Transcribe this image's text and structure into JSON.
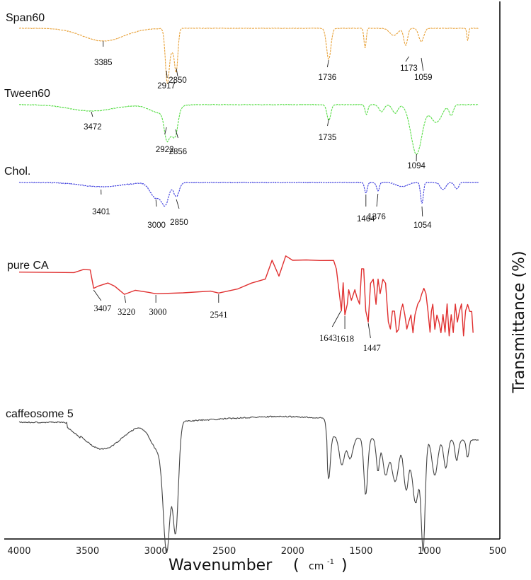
{
  "chart_data": {
    "type": "line",
    "xlabel": "Wavenumber",
    "xlabel_paren_open": "(",
    "xlabel_unit": "cm",
    "xlabel_unit_sup": "-1",
    "xlabel_paren_close": ")",
    "ylabel": "Transmittance (%)",
    "xlim": [
      4000,
      500
    ],
    "x_reversed": true,
    "xticks": [
      "4000",
      "3500",
      "3000",
      "2500",
      "2000",
      "1500",
      "1000",
      "500"
    ],
    "grid": false,
    "series": [
      {
        "name": "Span60",
        "color": "#e8a23a",
        "peaks": [
          {
            "wavenumber": 3385,
            "label": "3385"
          },
          {
            "wavenumber": 2917,
            "label": "2917"
          },
          {
            "wavenumber": 2850,
            "label": "2850"
          },
          {
            "wavenumber": 1736,
            "label": "1736"
          },
          {
            "wavenumber": 1173,
            "label": "1173"
          },
          {
            "wavenumber": 1059,
            "label": "1059"
          }
        ]
      },
      {
        "name": "Tween60",
        "color": "#55dd44",
        "peaks": [
          {
            "wavenumber": 3472,
            "label": "3472"
          },
          {
            "wavenumber": 2922,
            "label": "2922"
          },
          {
            "wavenumber": 2856,
            "label": "2856"
          },
          {
            "wavenumber": 1735,
            "label": "1735"
          },
          {
            "wavenumber": 1094,
            "label": "1094"
          }
        ]
      },
      {
        "name": "Chol.",
        "color": "#3b3bdd",
        "peaks": [
          {
            "wavenumber": 3401,
            "label": "3401"
          },
          {
            "wavenumber": 3000,
            "label": "3000"
          },
          {
            "wavenumber": 2850,
            "label": "2850"
          },
          {
            "wavenumber": 1464,
            "label": "1464"
          },
          {
            "wavenumber": 1376,
            "label": "1376"
          },
          {
            "wavenumber": 1054,
            "label": "1054"
          }
        ]
      },
      {
        "name": "pure CA",
        "color": "#e03030",
        "peaks": [
          {
            "wavenumber": 3407,
            "label": "3407"
          },
          {
            "wavenumber": 3220,
            "label": "3220"
          },
          {
            "wavenumber": 3000,
            "label": "3000"
          },
          {
            "wavenumber": 2541,
            "label": "2541"
          },
          {
            "wavenumber": 1643,
            "label": "1643"
          },
          {
            "wavenumber": 1618,
            "label": "1618"
          },
          {
            "wavenumber": 1447,
            "label": "1447"
          }
        ]
      },
      {
        "name": "caffeosome 5",
        "color": "#444444",
        "peaks": []
      }
    ]
  }
}
